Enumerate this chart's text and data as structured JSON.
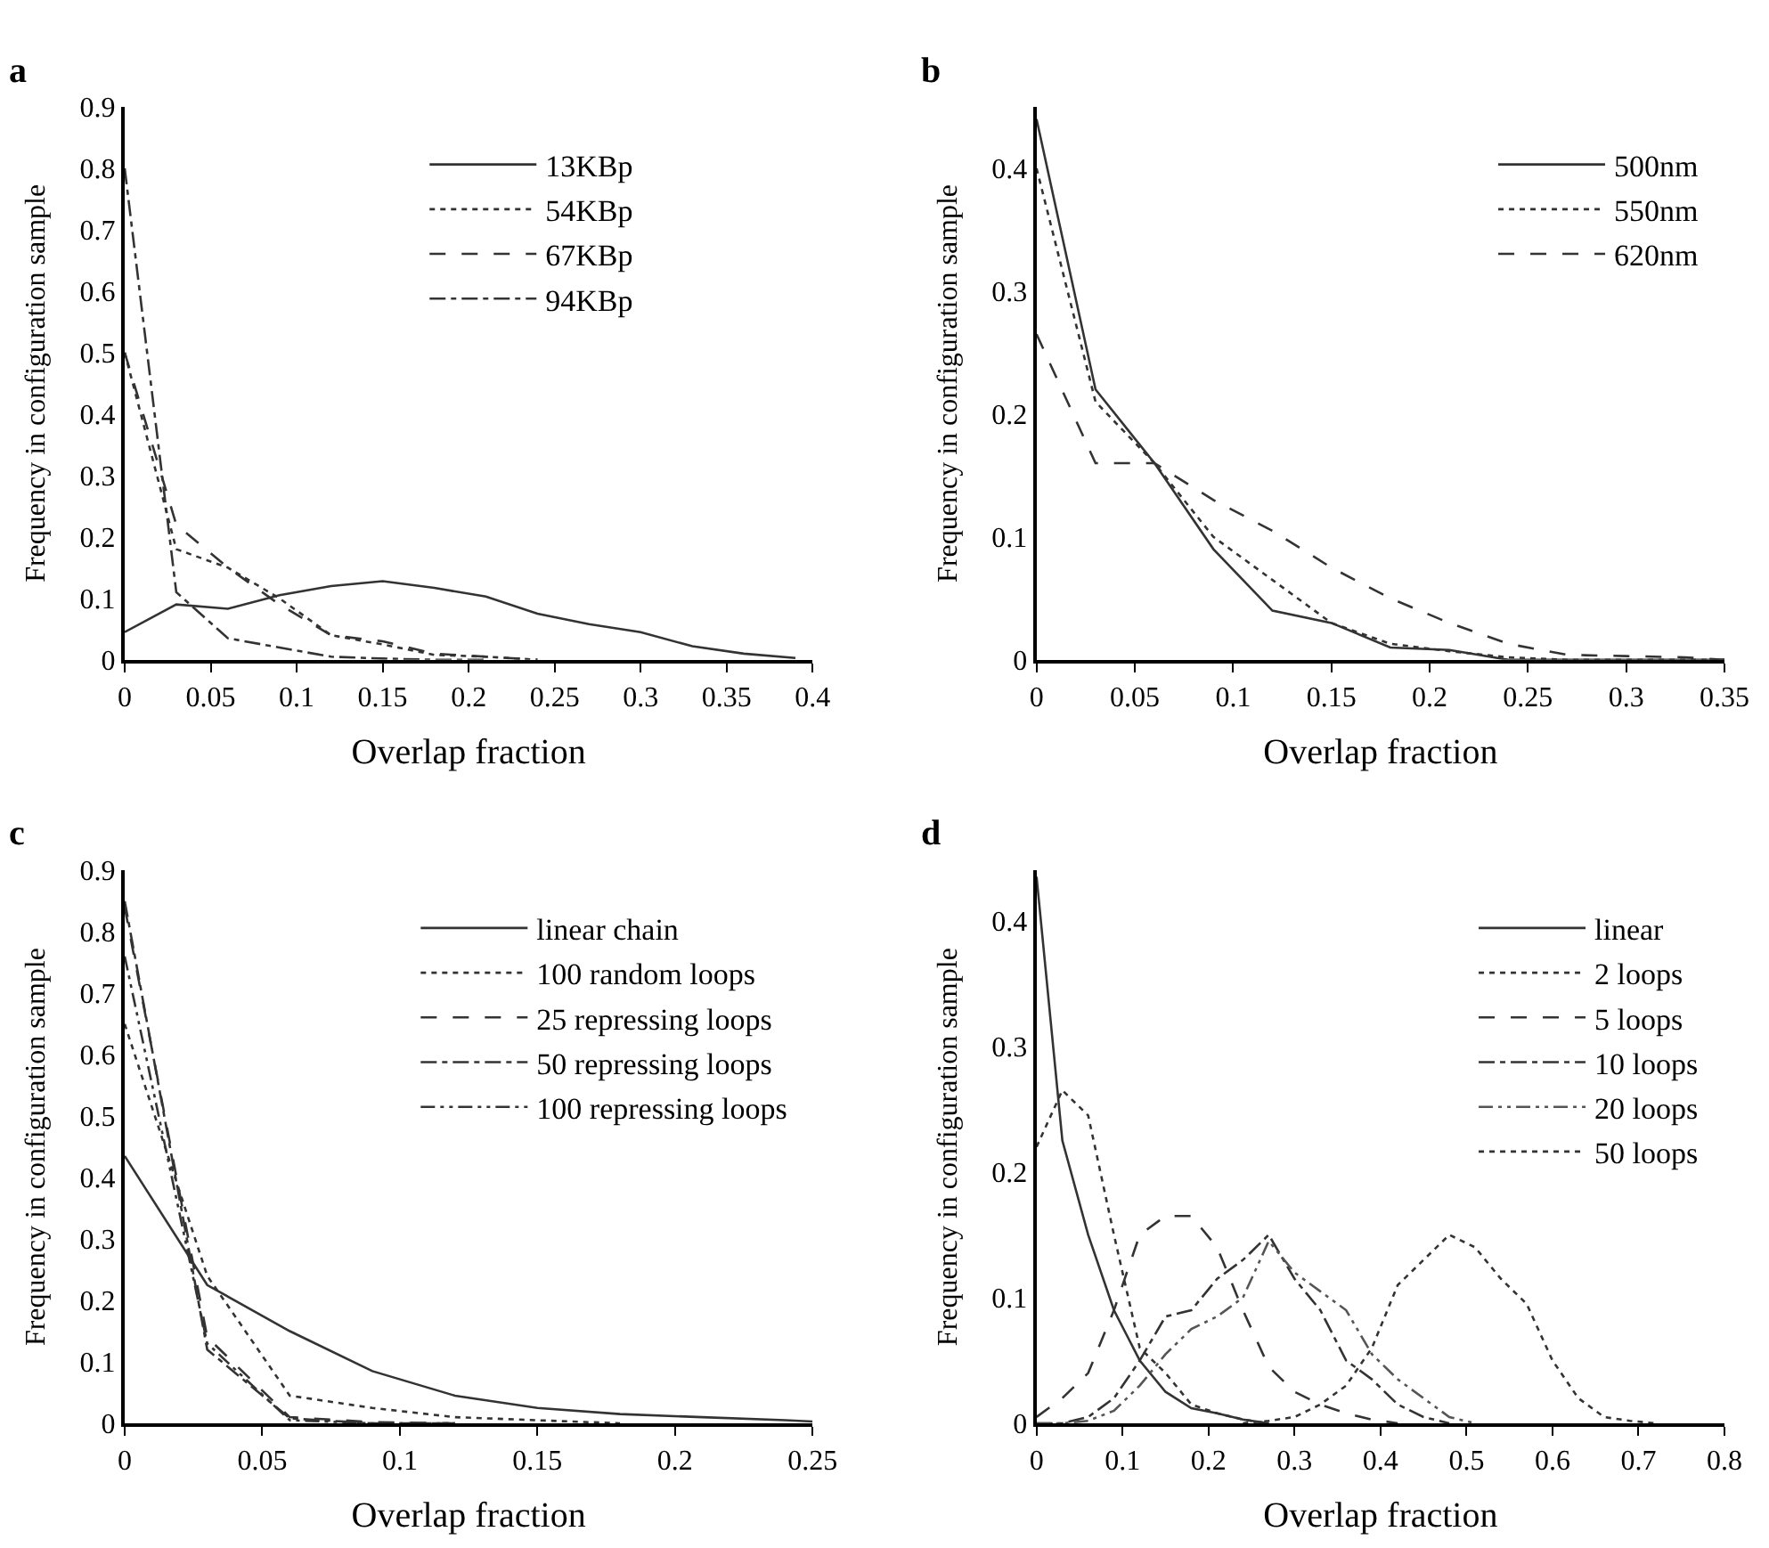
{
  "chart_data": [
    {
      "type": "line",
      "title": "a",
      "xlabel": "Overlap fraction",
      "ylabel": "Frequency in configuration sample",
      "xlim": [
        0,
        0.4
      ],
      "xticks": [
        0,
        0.05,
        0.1,
        0.15,
        0.2,
        0.25,
        0.3,
        0.35,
        0.4
      ],
      "ylim": [
        0,
        0.9
      ],
      "yticks": [
        0,
        0.1,
        0.2,
        0.3,
        0.4,
        0.5,
        0.6,
        0.7,
        0.8,
        0.9
      ],
      "legend": "top",
      "marker": "none",
      "x": [
        0,
        0.03,
        0.06,
        0.09,
        0.12,
        0.15,
        0.18,
        0.21,
        0.24,
        0.27,
        0.3,
        0.33,
        0.36,
        0.39
      ],
      "series": [
        {
          "name": "13KBp",
          "color": "#333333",
          "line_style": "solid",
          "values": [
            0.045,
            0.09,
            0.083,
            0.105,
            0.12,
            0.128,
            0.117,
            0.103,
            0.075,
            0.058,
            0.045,
            0.022,
            0.01,
            0.003
          ]
        },
        {
          "name": "54KBp",
          "color": "#333333",
          "line_style": "dotted",
          "values": [
            0.5,
            0.18,
            0.15,
            0.1,
            0.04,
            0.025,
            0.008,
            0.005,
            0,
            null,
            null,
            null,
            null,
            null
          ]
        },
        {
          "name": "67KBp",
          "color": "#333333",
          "line_style": "dashed",
          "values": [
            0.5,
            0.22,
            0.15,
            0.09,
            0.04,
            0.03,
            0.01,
            0.005,
            0,
            null,
            null,
            null,
            null,
            null
          ]
        },
        {
          "name": "94KBp",
          "color": "#333333",
          "line_style": "dashdot",
          "values": [
            0.8,
            0.11,
            0.035,
            0.02,
            0.005,
            0.002,
            0,
            0,
            null,
            null,
            null,
            null,
            null,
            null
          ]
        }
      ]
    },
    {
      "type": "line",
      "title": "b",
      "xlabel": "Overlap fraction",
      "ylabel": "Frequency in configuration sample",
      "xlim": [
        0,
        0.35
      ],
      "xticks": [
        0,
        0.05,
        0.1,
        0.15,
        0.2,
        0.25,
        0.3,
        0.35
      ],
      "ylim": [
        0,
        0.45
      ],
      "yticks": [
        0,
        0.1,
        0.2,
        0.3,
        0.4
      ],
      "legend": "top right",
      "marker": "none",
      "x": [
        0,
        0.03,
        0.06,
        0.09,
        0.12,
        0.15,
        0.18,
        0.21,
        0.24,
        0.27,
        0.3,
        0.33,
        0.35
      ],
      "series": [
        {
          "name": "500nm",
          "color": "#333333",
          "line_style": "solid",
          "values": [
            0.44,
            0.22,
            0.16,
            0.09,
            0.04,
            0.03,
            0.01,
            0.008,
            0,
            0,
            0,
            0,
            0
          ]
        },
        {
          "name": "550nm",
          "color": "#333333",
          "line_style": "dotted",
          "values": [
            0.4,
            0.21,
            0.16,
            0.1,
            0.065,
            0.03,
            0.013,
            0.007,
            0.002,
            0,
            0,
            0,
            0
          ]
        },
        {
          "name": "620nm",
          "color": "#333333",
          "line_style": "dashed",
          "values": [
            0.265,
            0.16,
            0.16,
            0.13,
            0.105,
            0.075,
            0.05,
            0.03,
            0.013,
            0.004,
            0.003,
            0.002,
            0
          ]
        }
      ]
    },
    {
      "type": "line",
      "title": "c",
      "xlabel": "Overlap fraction",
      "ylabel": "Frequency in configuration sample",
      "xlim": [
        0,
        0.25
      ],
      "xticks": [
        0,
        0.05,
        0.1,
        0.15,
        0.2,
        0.25
      ],
      "ylim": [
        0,
        0.9
      ],
      "yticks": [
        0,
        0.1,
        0.2,
        0.3,
        0.4,
        0.5,
        0.6,
        0.7,
        0.8,
        0.9
      ],
      "legend": "top right",
      "marker": "none",
      "x": [
        0,
        0.03,
        0.06,
        0.09,
        0.12,
        0.15,
        0.18,
        0.21,
        0.24,
        0.25
      ],
      "series": [
        {
          "name": "linear chain",
          "color": "#333333",
          "line_style": "solid",
          "values": [
            0.435,
            0.225,
            0.15,
            0.085,
            0.045,
            0.025,
            0.015,
            0.01,
            0.005,
            0.003
          ]
        },
        {
          "name": "100 random loops",
          "color": "#333333",
          "line_style": "dotted",
          "values": [
            0.65,
            0.24,
            0.045,
            0.025,
            0.01,
            0.005,
            0,
            null,
            null,
            null
          ]
        },
        {
          "name": "25 repressing loops",
          "color": "#333333",
          "line_style": "dashed",
          "values": [
            0.84,
            0.14,
            0.01,
            0.002,
            0,
            null,
            null,
            null,
            null,
            null
          ]
        },
        {
          "name": "50 repressing loops",
          "color": "#333333",
          "line_style": "dashdot",
          "values": [
            0.85,
            0.12,
            0.008,
            0,
            0,
            null,
            null,
            null,
            null,
            null
          ]
        },
        {
          "name": "100 repressing loops",
          "color": "#333333",
          "line_style": "dashdotdot",
          "values": [
            0.76,
            0.13,
            0.005,
            0,
            0,
            null,
            null,
            null,
            null,
            null
          ]
        }
      ]
    },
    {
      "type": "line",
      "title": "d",
      "xlabel": "Overlap fraction",
      "ylabel": "Frequency in configuration sample",
      "xlim": [
        0,
        0.8
      ],
      "xticks": [
        0,
        0.1,
        0.2,
        0.3,
        0.4,
        0.5,
        0.6,
        0.7,
        0.8
      ],
      "ylim": [
        0,
        0.44
      ],
      "yticks": [
        0,
        0.1,
        0.2,
        0.3,
        0.4
      ],
      "legend": "top right",
      "marker": "none",
      "x": [
        0,
        0.03,
        0.06,
        0.09,
        0.12,
        0.15,
        0.18,
        0.21,
        0.24,
        0.27,
        0.3,
        0.33,
        0.36,
        0.39,
        0.42,
        0.45,
        0.48,
        0.51,
        0.54,
        0.57,
        0.6,
        0.63,
        0.66,
        0.69,
        0.72
      ],
      "series": [
        {
          "name": "linear",
          "color": "#333333",
          "line_style": "solid",
          "values": [
            0.435,
            0.225,
            0.15,
            0.09,
            0.05,
            0.025,
            0.012,
            0.008,
            0.003,
            0,
            null,
            null,
            null,
            null,
            null,
            null,
            null,
            null,
            null,
            null,
            null,
            null,
            null,
            null,
            null
          ]
        },
        {
          "name": "2 loops",
          "color": "#333333",
          "line_style": "dotted",
          "values": [
            0.22,
            0.265,
            0.245,
            0.15,
            0.06,
            0.04,
            0.015,
            0.008,
            0.003,
            0,
            null,
            null,
            null,
            null,
            null,
            null,
            null,
            null,
            null,
            null,
            null,
            null,
            null,
            null,
            null
          ]
        },
        {
          "name": "5 loops",
          "color": "#333333",
          "line_style": "dashed",
          "values": [
            0.005,
            0.02,
            0.04,
            0.09,
            0.15,
            0.165,
            0.165,
            0.14,
            0.09,
            0.045,
            0.025,
            0.015,
            0.008,
            0.003,
            0,
            null,
            null,
            null,
            null,
            null,
            null,
            null,
            null,
            null,
            null
          ]
        },
        {
          "name": "10 loops",
          "color": "#333333",
          "line_style": "dashdot",
          "values": [
            0,
            0,
            0.005,
            0.02,
            0.05,
            0.085,
            0.09,
            0.115,
            0.13,
            0.15,
            0.115,
            0.09,
            0.05,
            0.035,
            0.015,
            0.005,
            0,
            null,
            null,
            null,
            null,
            null,
            null,
            null,
            null
          ]
        },
        {
          "name": "20 loops",
          "color": "#555555",
          "line_style": "dashdotdot",
          "values": [
            0,
            0,
            0.002,
            0.01,
            0.03,
            0.055,
            0.075,
            0.085,
            0.1,
            0.145,
            0.12,
            0.105,
            0.09,
            0.055,
            0.035,
            0.02,
            0.005,
            0,
            null,
            null,
            null,
            null,
            null,
            null,
            null
          ]
        },
        {
          "name": "50 loops",
          "color": "#333333",
          "line_style": "shortdash",
          "values": [
            null,
            null,
            null,
            null,
            null,
            null,
            null,
            null,
            0,
            0.002,
            0.005,
            0.015,
            0.03,
            0.06,
            0.11,
            0.13,
            0.15,
            0.14,
            0.115,
            0.095,
            0.05,
            0.02,
            0.005,
            0.002,
            0
          ]
        }
      ]
    }
  ]
}
